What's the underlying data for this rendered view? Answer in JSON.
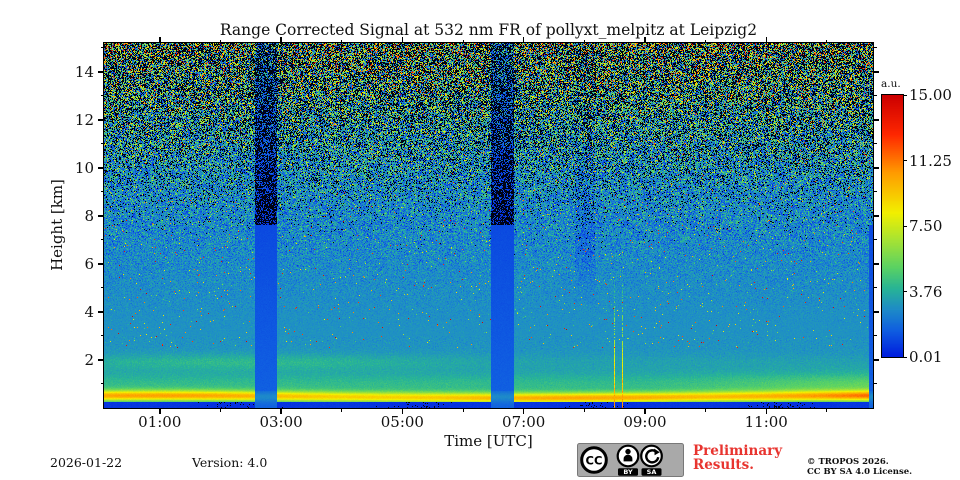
{
  "figure": {
    "title": "Range Corrected Signal at 532 nm FR of pollyxt_melpitz at Leipzig2",
    "x_axis": {
      "label": "Time [UTC]",
      "major_tick_labels": [
        "01:00",
        "03:00",
        "05:00",
        "07:00",
        "09:00",
        "11:00"
      ],
      "major_tick_hours": [
        1,
        3,
        5,
        7,
        9,
        11
      ],
      "minor_tick_hours": [
        2,
        4,
        6,
        8,
        10,
        12
      ],
      "start_hour": 0.08,
      "end_hour": 12.76
    },
    "y_axis": {
      "label": "Height [km]",
      "major_tick_labels": [
        "2",
        "4",
        "6",
        "8",
        "10",
        "12",
        "14"
      ],
      "major_tick_km": [
        2,
        4,
        6,
        8,
        10,
        12,
        14
      ],
      "minor_tick_km": [
        1,
        3,
        5,
        7,
        9,
        11,
        13,
        15
      ],
      "min_km": 0,
      "max_km": 15.2
    },
    "colorbar": {
      "unit_label": "a.u.",
      "tick_labels": [
        "15.00",
        "11.25",
        "7.50",
        "3.76",
        "0.01"
      ],
      "vmin": 0.01,
      "vmax": 15.0
    }
  },
  "footer": {
    "date": "2026-01-22",
    "version": "Version: 4.0",
    "preliminary_line1": "Preliminary",
    "preliminary_line2": "Results.",
    "copyright_line1": "© TROPOS 2026.",
    "copyright_line2": "CC BY SA 4.0 License.",
    "cc_logo_text": "CC",
    "cc_label_by": "BY",
    "cc_label_sa": "SA"
  },
  "chart_data": {
    "type": "heatmap",
    "title": "Range Corrected Signal at 532 nm FR of pollyxt_melpitz at Leipzig2",
    "xlabel": "Time [UTC]",
    "ylabel": "Height [km]",
    "x_range_hours": [
      0.08,
      12.76
    ],
    "x_ticks": [
      "01:00",
      "03:00",
      "05:00",
      "07:00",
      "09:00",
      "11:00"
    ],
    "y_range_km": [
      0,
      15.2
    ],
    "y_ticks": [
      2,
      4,
      6,
      8,
      10,
      12,
      14
    ],
    "colorbar": {
      "label": "a.u.",
      "tick_values": [
        15.0,
        11.25,
        7.5,
        3.76,
        0.01
      ],
      "vmin": 0.01,
      "vmax": 15.0,
      "colormap": "jet-like (blue-cyan-green-yellow-orange-red)"
    },
    "features": {
      "surface_aerosol_layer": {
        "height_km": [
          0.25,
          0.7
        ],
        "peak_value_au": 10,
        "description": "bright yellow-green layer just above ground, orange hot spots after 10:30 UTC"
      },
      "overlap_dark_strip": {
        "height_km": [
          0,
          0.25
        ],
        "value_au": 0.5,
        "description": "dark blue strip at the very bottom"
      },
      "boundary_layer_haze": {
        "height_km": [
          0.7,
          2.5
        ],
        "value_au": [
          3.5,
          4.5
        ],
        "description": "teal-green haze with faint layering near 1.9 km, strongest 00:30-06:00 UTC"
      },
      "free_troposphere": {
        "height_km": [
          2.5,
          7.5
        ],
        "value_au": [
          2.3,
          3.0
        ],
        "description": "smooth cyan-blue background"
      },
      "noise_region": {
        "height_km": [
          7.5,
          15.2
        ],
        "description": "speckle noise: black/blue pixels with sparse green/yellow/red dots, denser green dots toward the upper-right after 08:00 UTC"
      },
      "calibration_gaps_utc": [
        [
          "02:34",
          "02:56"
        ],
        [
          "06:28",
          "06:50"
        ]
      ],
      "right_edge_gap_utc": [
        "12:42",
        "12:46"
      ],
      "spike_columns_utc": [
        "08:30",
        "08:38"
      ],
      "dim_band_utc": [
        "07:51",
        "08:11"
      ]
    }
  },
  "render_params": {
    "seed": 1337,
    "gaps": [
      {
        "t0": 2.567,
        "t1": 2.933,
        "top_km": 7.6,
        "black_above": true
      },
      {
        "t0": 6.467,
        "t1": 6.833,
        "top_km": 7.6,
        "black_above": true
      },
      {
        "t0": 12.69,
        "t1": 12.77,
        "top_km": 7.6,
        "black_above": false
      }
    ],
    "spike_hours": [
      8.5,
      8.63
    ],
    "dim_band_hours": [
      7.85,
      8.18
    ],
    "black_threshold": 0.33,
    "colormap_stops": [
      [
        0.0,
        0,
        30,
        222
      ],
      [
        0.1,
        16,
        95,
        225
      ],
      [
        0.18,
        30,
        140,
        200
      ],
      [
        0.26,
        40,
        180,
        150
      ],
      [
        0.34,
        90,
        210,
        100
      ],
      [
        0.45,
        170,
        228,
        50
      ],
      [
        0.55,
        242,
        240,
        0
      ],
      [
        0.7,
        255,
        158,
        0
      ],
      [
        0.85,
        255,
        40,
        0
      ],
      [
        1.0,
        205,
        0,
        0
      ]
    ],
    "accent_red": "#e8342f",
    "badge_gray": "#a9a9a9"
  }
}
